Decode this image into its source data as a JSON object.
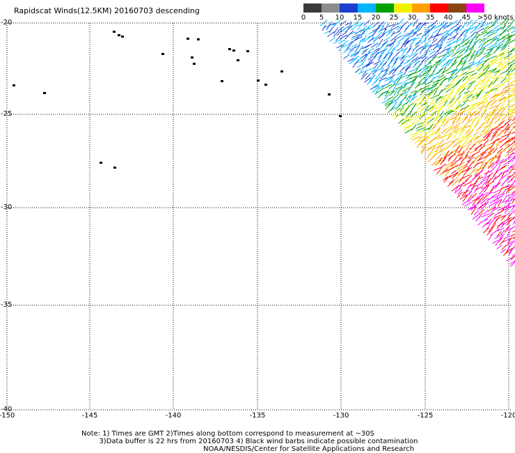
{
  "title": "Rapidscat Winds(12.5KM) 20160703 descending",
  "legend": {
    "labels": [
      "0",
      "5",
      "10",
      "15",
      "20",
      "25",
      "30",
      "35",
      "40",
      "45",
      ">50 knots"
    ],
    "colors": [
      "#3a3a3a",
      "#8c8c8c",
      "#1c3fd0",
      "#00b4ff",
      "#00a000",
      "#f0f000",
      "#ffa000",
      "#ff0000",
      "#8b4513",
      "#ff00ff",
      "#5a00a0"
    ]
  },
  "axes": {
    "lat_labels": [
      "-20",
      "-25",
      "-30",
      "-35",
      "-40"
    ],
    "lon_labels": [
      "-150",
      "-145",
      "-140",
      "-135",
      "-130",
      "-125",
      "-120"
    ]
  },
  "notes": {
    "line1": "Note: 1) Times are GMT 2)Times along bottom correspond to measurement at ~30S",
    "line2": "3)Data buffer is 22 hrs from 20160703 4) Black wind barbs indicate possible contamination",
    "credit": "NOAA/NESDIS/Center for Satellite Applications and Research"
  }
}
